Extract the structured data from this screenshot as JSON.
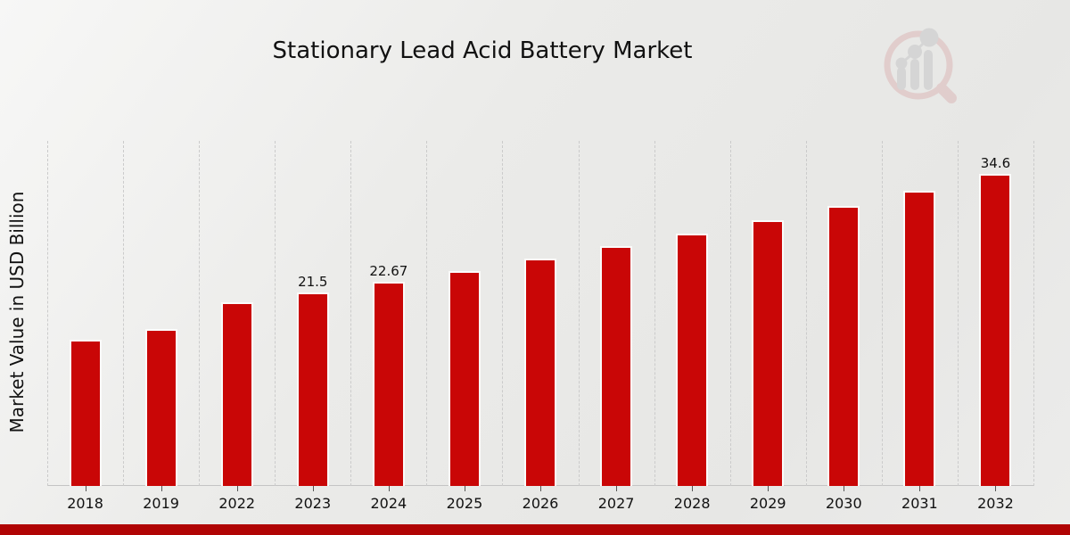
{
  "chart_data": {
    "type": "bar",
    "title": "Stationary Lead Acid Battery Market",
    "ylabel": "Market Value in USD Billion",
    "xlabel": "",
    "categories": [
      "2018",
      "2019",
      "2022",
      "2023",
      "2024",
      "2025",
      "2026",
      "2027",
      "2028",
      "2029",
      "2030",
      "2031",
      "2032"
    ],
    "values": [
      16.2,
      17.4,
      20.4,
      21.5,
      22.67,
      23.9,
      25.2,
      26.6,
      28.0,
      29.5,
      31.1,
      32.8,
      34.6
    ],
    "bar_labels": [
      "",
      "",
      "",
      "21.5",
      "22.67",
      "",
      "",
      "",
      "",
      "",
      "",
      "",
      "34.6"
    ],
    "ylim": [
      0,
      38.6
    ],
    "grid": "vertical dashed lines at category boundaries",
    "legend": "none"
  },
  "watermark": {
    "icon_name": "magnifier-bar-chart-trend-logo"
  },
  "colors": {
    "bar": "#c90606",
    "bar_edge": "#fbfbfa",
    "bottom_band": "#b00404",
    "gridline": "#cbcbcb",
    "axis_line": "#c4c4c4",
    "tick": "#555555",
    "text": "#111111",
    "logo_pink": "#dcb8b8",
    "logo_gray": "#c6c6c8",
    "background": "#eaeae8"
  }
}
